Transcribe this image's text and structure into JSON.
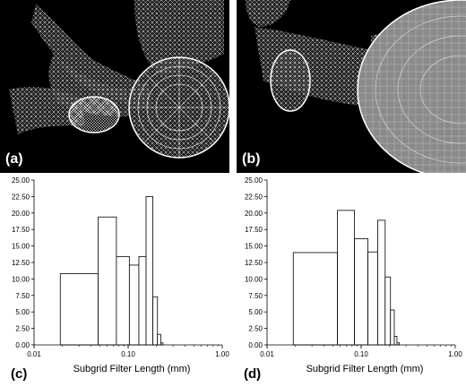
{
  "panels": [
    {
      "letter": "(a)"
    },
    {
      "letter": "(b)"
    }
  ],
  "chart_data": [
    {
      "type": "bar",
      "letter": "(c)",
      "xlabel": "Subgrid Filter Length (mm)",
      "ylabel": "",
      "xscale": "log",
      "xlim": [
        0.01,
        1.0
      ],
      "xticks": [
        "0.01",
        "0.10",
        "1.00"
      ],
      "ylim": [
        0,
        25
      ],
      "yticks": [
        "0.00",
        "2.50",
        "5.00",
        "7.50",
        "10.00",
        "12.50",
        "15.00",
        "17.50",
        "20.00",
        "22.50",
        "25.00"
      ],
      "bins": [
        {
          "x0": 0.019,
          "x1": 0.048,
          "value": 10.8
        },
        {
          "x0": 0.048,
          "x1": 0.075,
          "value": 19.4
        },
        {
          "x0": 0.075,
          "x1": 0.103,
          "value": 13.4
        },
        {
          "x0": 0.103,
          "x1": 0.13,
          "value": 12.1
        },
        {
          "x0": 0.13,
          "x1": 0.155,
          "value": 13.4
        },
        {
          "x0": 0.155,
          "x1": 0.183,
          "value": 22.5
        },
        {
          "x0": 0.183,
          "x1": 0.205,
          "value": 7.3
        },
        {
          "x0": 0.205,
          "x1": 0.222,
          "value": 1.6
        },
        {
          "x0": 0.222,
          "x1": 0.235,
          "value": 0.3
        }
      ],
      "grid": false,
      "legend": "none"
    },
    {
      "type": "bar",
      "letter": "(d)",
      "xlabel": "Subgrid Filter Length (mm)",
      "ylabel": "",
      "xscale": "log",
      "xlim": [
        0.01,
        1.0
      ],
      "xticks": [
        "0.01",
        "0.10",
        "1.00"
      ],
      "ylim": [
        0,
        25
      ],
      "yticks": [
        "0.00",
        "2.50",
        "5.00",
        "7.50",
        "10.00",
        "12.50",
        "15.00",
        "17.50",
        "20.00",
        "22.50",
        "25.00"
      ],
      "bins": [
        {
          "x0": 0.019,
          "x1": 0.056,
          "value": 14.0
        },
        {
          "x0": 0.056,
          "x1": 0.085,
          "value": 20.4
        },
        {
          "x0": 0.085,
          "x1": 0.118,
          "value": 16.1
        },
        {
          "x0": 0.118,
          "x1": 0.15,
          "value": 14.1
        },
        {
          "x0": 0.15,
          "x1": 0.18,
          "value": 18.9
        },
        {
          "x0": 0.18,
          "x1": 0.205,
          "value": 10.3
        },
        {
          "x0": 0.205,
          "x1": 0.225,
          "value": 5.3
        },
        {
          "x0": 0.225,
          "x1": 0.24,
          "value": 1.3
        },
        {
          "x0": 0.24,
          "x1": 0.255,
          "value": 0.3
        }
      ],
      "grid": false,
      "legend": "none"
    }
  ]
}
